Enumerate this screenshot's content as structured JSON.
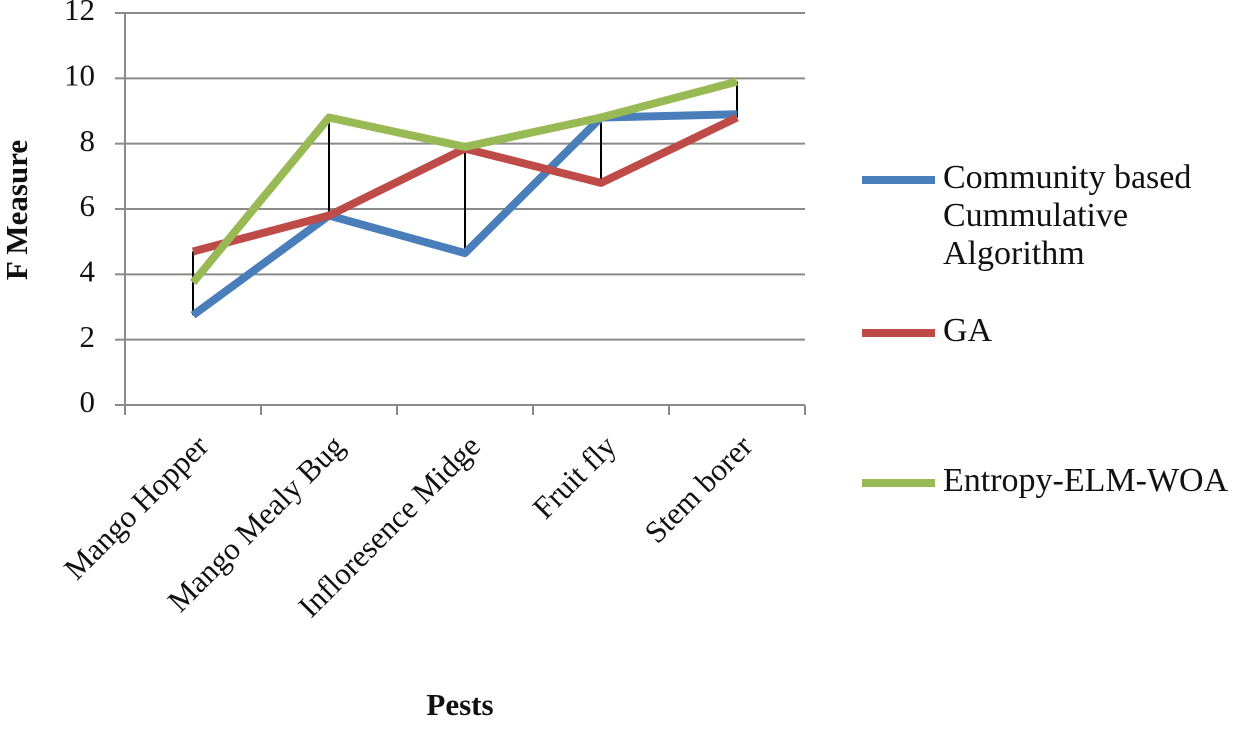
{
  "chart_data": {
    "type": "line",
    "x_label": "Pests",
    "y_label": "F Measure",
    "categories": [
      "Mango Hopper",
      "Mango Mealy Bug",
      "Infloresence Midge",
      "Fruit fly",
      "Stem borer"
    ],
    "series": [
      {
        "name": "Community based Cummulative Algorithm",
        "color": "#4a7ebb",
        "values": [
          2.75,
          5.8,
          4.65,
          8.8,
          8.9
        ]
      },
      {
        "name": "GA",
        "color": "#be4b48",
        "values": [
          4.7,
          5.8,
          7.85,
          6.8,
          8.8
        ]
      },
      {
        "name": "Entropy-ELM-WOA",
        "color": "#98b954",
        "values": [
          3.75,
          8.8,
          7.9,
          8.8,
          9.9
        ]
      }
    ],
    "ylim": [
      0,
      12
    ],
    "yticks": [
      0,
      2,
      4,
      6,
      8,
      10,
      12
    ],
    "grid": true,
    "high_low_lines": true,
    "legend": "right"
  }
}
